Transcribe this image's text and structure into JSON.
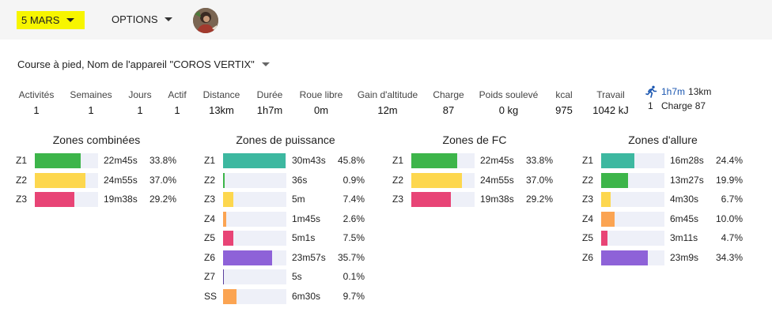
{
  "topbar": {
    "date_label": "5 MARS",
    "options_label": "OPTIONS"
  },
  "device_label": "Course à pied, Nom de l'appareil \"COROS VERTIX\"",
  "stats": [
    {
      "label": "Activités",
      "value": "1"
    },
    {
      "label": "Semaines",
      "value": "1"
    },
    {
      "label": "Jours",
      "value": "1"
    },
    {
      "label": "Actif",
      "value": "1"
    },
    {
      "label": "Distance",
      "value": "13km"
    },
    {
      "label": "Durée",
      "value": "1h7m"
    },
    {
      "label": "Roue libre",
      "value": "0m"
    },
    {
      "label": "Gain d'altitude",
      "value": "12m"
    },
    {
      "label": "Charge",
      "value": "87"
    },
    {
      "label": "Poids soulevé",
      "value": "0 kg"
    },
    {
      "label": "kcal",
      "value": "975"
    },
    {
      "label": "Travail",
      "value": "1042 kJ"
    }
  ],
  "summary": {
    "icon": "running-person-icon",
    "time": "1h7m",
    "distance": "13km",
    "count": "1",
    "charge": "Charge 87"
  },
  "colors": {
    "green": "#3db54a",
    "yellow": "#fdd74e",
    "pink": "#e84476",
    "teal": "#3db8a0",
    "orange": "#fba452",
    "purple": "#8e62d8",
    "track": "#eef0f8",
    "highlight": "#f7f500",
    "link": "#1a56b0"
  },
  "zones": [
    {
      "title": "Zones combinées",
      "rows": [
        {
          "label": "Z1",
          "time": "22m45s",
          "pct": "33.8%",
          "fraction": 0.338,
          "color": "#3db54a"
        },
        {
          "label": "Z2",
          "time": "24m55s",
          "pct": "37.0%",
          "fraction": 0.37,
          "color": "#fdd74e"
        },
        {
          "label": "Z3",
          "time": "19m38s",
          "pct": "29.2%",
          "fraction": 0.292,
          "color": "#e84476"
        }
      ]
    },
    {
      "title": "Zones de puissance",
      "rows": [
        {
          "label": "Z1",
          "time": "30m43s",
          "pct": "45.8%",
          "fraction": 0.458,
          "color": "#3db8a0"
        },
        {
          "label": "Z2",
          "time": "36s",
          "pct": "0.9%",
          "fraction": 0.009,
          "color": "#3db54a"
        },
        {
          "label": "Z3",
          "time": "5m",
          "pct": "7.4%",
          "fraction": 0.074,
          "color": "#fdd74e"
        },
        {
          "label": "Z4",
          "time": "1m45s",
          "pct": "2.6%",
          "fraction": 0.026,
          "color": "#fba452"
        },
        {
          "label": "Z5",
          "time": "5m1s",
          "pct": "7.5%",
          "fraction": 0.075,
          "color": "#e84476"
        },
        {
          "label": "Z6",
          "time": "23m57s",
          "pct": "35.7%",
          "fraction": 0.357,
          "color": "#8e62d8"
        },
        {
          "label": "Z7",
          "time": "5s",
          "pct": "0.1%",
          "fraction": 0.001,
          "color": "#5c3f9e"
        },
        {
          "label": "SS",
          "time": "6m30s",
          "pct": "9.7%",
          "fraction": 0.097,
          "color": "#fba452"
        }
      ]
    },
    {
      "title": "Zones de FC",
      "rows": [
        {
          "label": "Z1",
          "time": "22m45s",
          "pct": "33.8%",
          "fraction": 0.338,
          "color": "#3db54a"
        },
        {
          "label": "Z2",
          "time": "24m55s",
          "pct": "37.0%",
          "fraction": 0.37,
          "color": "#fdd74e"
        },
        {
          "label": "Z3",
          "time": "19m38s",
          "pct": "29.2%",
          "fraction": 0.292,
          "color": "#e84476"
        }
      ]
    },
    {
      "title": "Zones d'allure",
      "rows": [
        {
          "label": "Z1",
          "time": "16m28s",
          "pct": "24.4%",
          "fraction": 0.244,
          "color": "#3db8a0"
        },
        {
          "label": "Z2",
          "time": "13m27s",
          "pct": "19.9%",
          "fraction": 0.199,
          "color": "#3db54a"
        },
        {
          "label": "Z3",
          "time": "4m30s",
          "pct": "6.7%",
          "fraction": 0.067,
          "color": "#fdd74e"
        },
        {
          "label": "Z4",
          "time": "6m45s",
          "pct": "10.0%",
          "fraction": 0.1,
          "color": "#fba452"
        },
        {
          "label": "Z5",
          "time": "3m11s",
          "pct": "4.7%",
          "fraction": 0.047,
          "color": "#e84476"
        },
        {
          "label": "Z6",
          "time": "23m9s",
          "pct": "34.3%",
          "fraction": 0.343,
          "color": "#8e62d8"
        }
      ]
    }
  ]
}
